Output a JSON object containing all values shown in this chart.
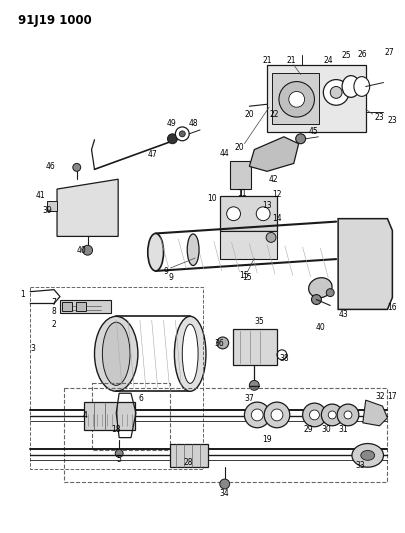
{
  "title": "91J19 1000",
  "background_color": "#ffffff",
  "fig_width": 4.06,
  "fig_height": 5.33,
  "dpi": 100,
  "label_fontsize": 5.5,
  "line_color": "#1a1a1a",
  "thin_color": "#333333",
  "dashed_color": "#555555"
}
